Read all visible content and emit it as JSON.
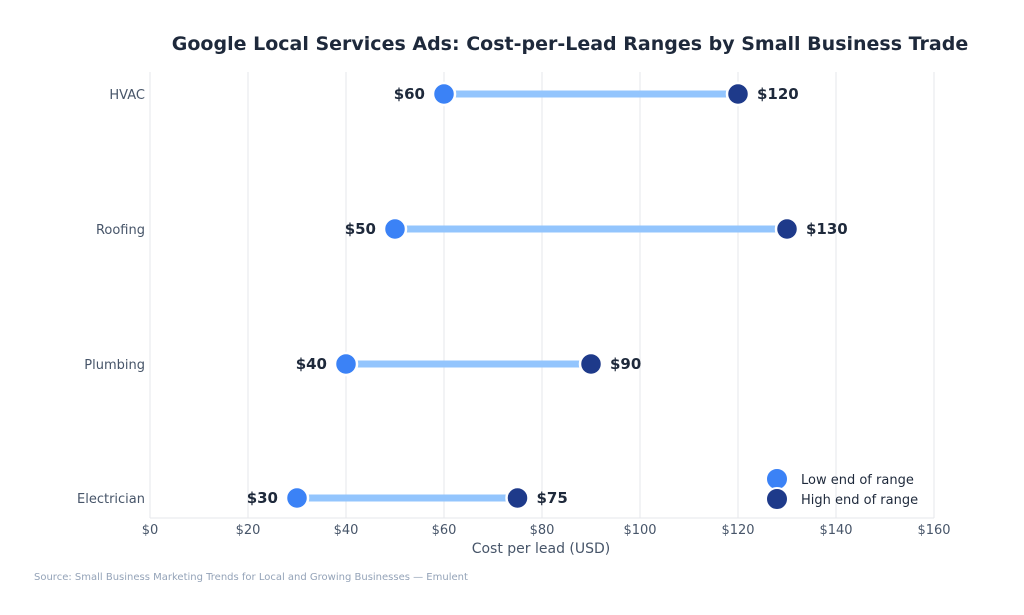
{
  "chart_data": {
    "type": "dumbbell",
    "title": "Google Local Services Ads: Cost-per-Lead Ranges by Small Business Trade",
    "xlabel": "Cost per lead (USD)",
    "ylabel": "",
    "xlim": [
      0,
      160
    ],
    "xticks": [
      0,
      20,
      40,
      60,
      80,
      100,
      120,
      140,
      160
    ],
    "xtick_labels": [
      "$0",
      "$20",
      "$40",
      "$60",
      "$80",
      "$100",
      "$120",
      "$140",
      "$160"
    ],
    "grid": "vertical",
    "categories": [
      "HVAC",
      "Roofing",
      "Plumbing",
      "Electrician"
    ],
    "series": [
      {
        "name": "Low end of range",
        "values": [
          60,
          50,
          40,
          30
        ],
        "labels": [
          "$60",
          "$50",
          "$40",
          "$30"
        ]
      },
      {
        "name": "High end of range",
        "values": [
          120,
          130,
          90,
          75
        ],
        "labels": [
          "$120",
          "$130",
          "$90",
          "$75"
        ]
      }
    ],
    "legend_position": "bottom-right",
    "source": "Source: Small Business Marketing Trends for Local and Growing Businesses — Emulent"
  },
  "colors": {
    "low": "#3b82f6",
    "high": "#1e3a8a",
    "connector": "#93c5fd",
    "grid": "#e5e7eb"
  }
}
